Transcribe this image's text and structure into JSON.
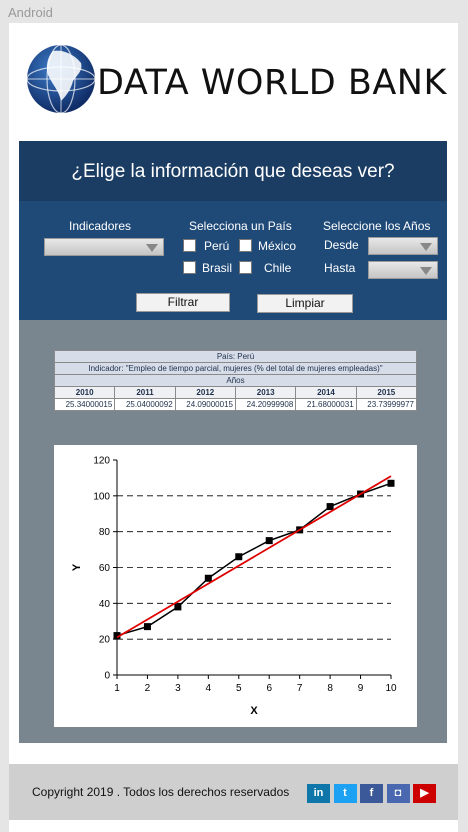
{
  "os_label": "Android",
  "brand": "DATA WORLD BANK",
  "header": {
    "title": "¿Elige la información que deseas ver?"
  },
  "filters": {
    "indicators_label": "Indicadores",
    "country_label": "Selecciona un País",
    "countries": [
      {
        "label": "Perú",
        "checked": false
      },
      {
        "label": "México",
        "checked": false
      },
      {
        "label": "Brasil",
        "checked": false
      },
      {
        "label": "Chile",
        "checked": false
      }
    ],
    "years_label": "Seleccione los Años",
    "from_label": "Desde",
    "to_label": "Hasta",
    "filter_button": "Filtrar",
    "clear_button": "Limpiar"
  },
  "table": {
    "country_row": "País: Perú",
    "indicator_row": "Indicador: \"Empleo de tiempo parcial, mujeres (% del total de mujeres empleadas)\"",
    "years_header": "Años",
    "years": [
      "2010",
      "2011",
      "2012",
      "2013",
      "2014",
      "2015"
    ],
    "values": [
      "25.34000015",
      "25.04000092",
      "24.09000015",
      "24.20999908",
      "21.68000031",
      "23.73999977"
    ]
  },
  "chart_data": {
    "type": "scatter",
    "xlabel": "X",
    "ylabel": "Y",
    "xlim": [
      1,
      10
    ],
    "ylim": [
      0,
      120
    ],
    "xticks": [
      1,
      2,
      3,
      4,
      5,
      6,
      7,
      8,
      9,
      10
    ],
    "yticks": [
      0,
      20,
      40,
      60,
      80,
      100,
      120
    ],
    "grid": "horizontal dashed",
    "series": [
      {
        "x": [
          1,
          2,
          3,
          4,
          5,
          6,
          7,
          8,
          9,
          10
        ],
        "y": [
          22,
          27,
          38,
          54,
          66,
          75,
          81,
          94,
          101,
          107
        ],
        "color": "#000000",
        "marker": "square"
      },
      {
        "x": [
          1,
          10
        ],
        "y": [
          21,
          111
        ],
        "color": "#e00000",
        "style": "trend-line"
      }
    ]
  },
  "footer": {
    "copyright": "Copyright 2019 . Todos los derechos reservados",
    "social": [
      {
        "icon": "linkedin-icon",
        "glyph": "in",
        "color": "#0e76a8"
      },
      {
        "icon": "twitter-icon",
        "glyph": "t",
        "color": "#1da1f2"
      },
      {
        "icon": "facebook-icon",
        "glyph": "f",
        "color": "#3b5998"
      },
      {
        "icon": "instagram-icon",
        "glyph": "◘",
        "color": "#4a68b0"
      },
      {
        "icon": "youtube-icon",
        "glyph": "▶",
        "color": "#cc0000"
      }
    ]
  }
}
